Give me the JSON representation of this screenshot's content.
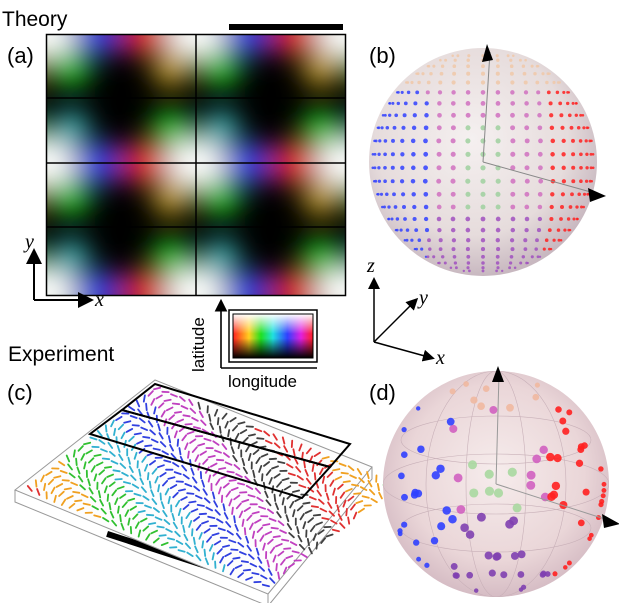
{
  "sections": {
    "theory": "Theory",
    "experiment": "Experiment"
  },
  "panels": {
    "a": "(a)",
    "b": "(b)",
    "c": "(c)",
    "d": "(d)"
  },
  "axes": {
    "x": "x",
    "y": "y",
    "z": "z"
  },
  "colormap": {
    "vertical_label": "latitude",
    "horizontal_label": "longitude"
  },
  "colors": {
    "red": "#ff2020",
    "green": "#20e020",
    "blue": "#3040ff",
    "black": "#000000",
    "white": "#ffffff"
  }
}
